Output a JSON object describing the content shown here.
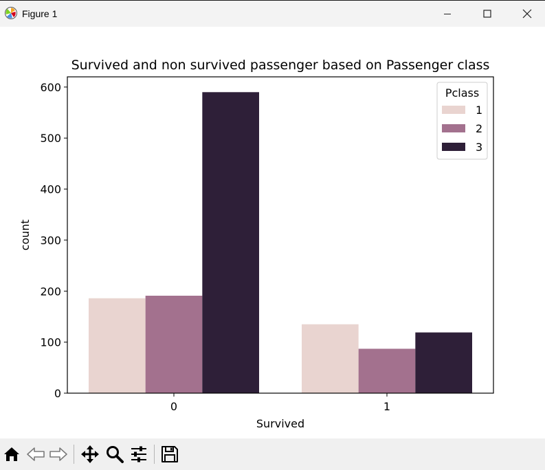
{
  "window": {
    "title": "Figure 1",
    "controls": [
      "minimize",
      "maximize",
      "close"
    ]
  },
  "toolbar": {
    "buttons": [
      {
        "name": "home-icon",
        "tooltip": "Reset original view"
      },
      {
        "name": "back-icon",
        "tooltip": "Back to previous view"
      },
      {
        "name": "forward-icon",
        "tooltip": "Forward to next view"
      },
      {
        "name": "pan-icon",
        "tooltip": "Pan axes"
      },
      {
        "name": "zoom-icon",
        "tooltip": "Zoom to rectangle"
      },
      {
        "name": "configure-subplots-icon",
        "tooltip": "Configure subplots"
      },
      {
        "name": "save-icon",
        "tooltip": "Save the figure"
      }
    ]
  },
  "chart_data": {
    "type": "bar",
    "title": "Survived and non survived passenger based on Passenger class",
    "xlabel": "Survived",
    "ylabel": "count",
    "categories": [
      "0",
      "1"
    ],
    "ylim": [
      0,
      620
    ],
    "yticks": [
      0,
      100,
      200,
      300,
      400,
      500,
      600
    ],
    "grid": false,
    "legend": {
      "title": "Pclass",
      "placement": "top-right"
    },
    "series": [
      {
        "name": "1",
        "color": "#e9d4d0",
        "values": [
          186,
          135
        ]
      },
      {
        "name": "2",
        "color": "#a3718e",
        "values": [
          191,
          87
        ]
      },
      {
        "name": "3",
        "color": "#2e1f38",
        "values": [
          590,
          119
        ]
      }
    ]
  }
}
